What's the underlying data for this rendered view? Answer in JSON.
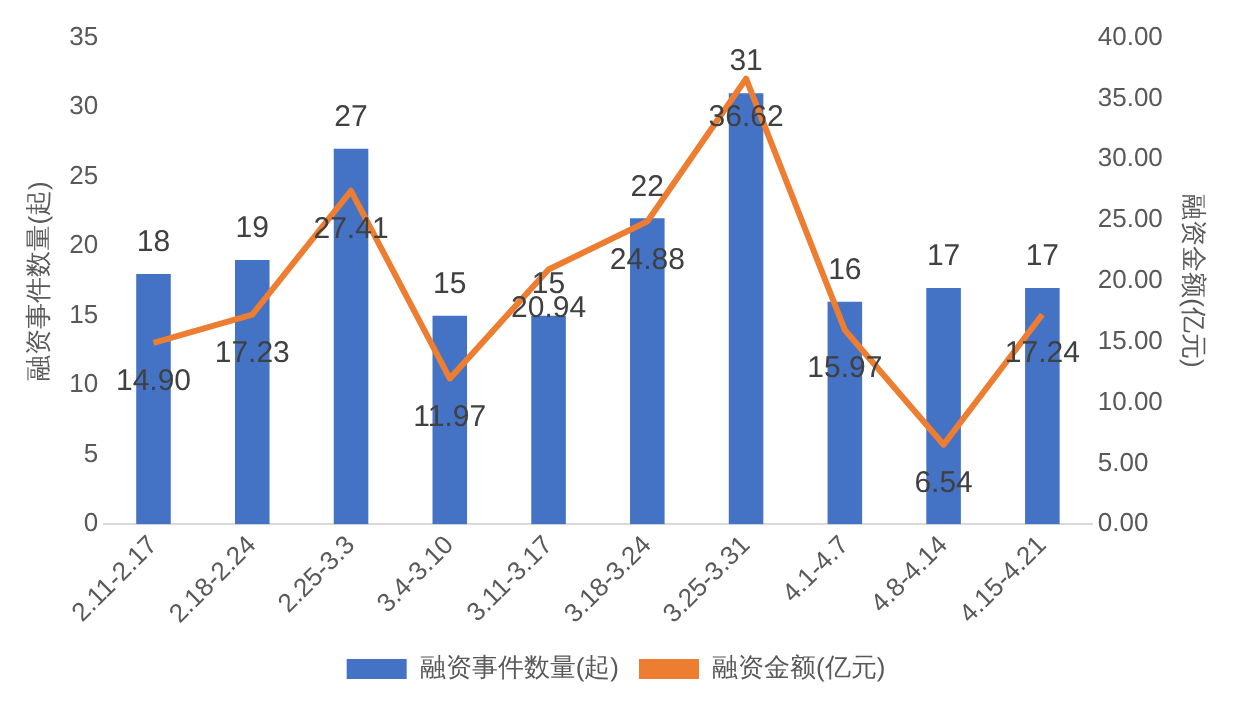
{
  "chart_data": {
    "type": "bar",
    "ylabel": "融资事件数量(起)",
    "y2label": "融资金额(亿元)",
    "categories": [
      "2.11-2.17",
      "2.18-2.24",
      "2.25-3.3",
      "3.4-3.10",
      "3.11-3.17",
      "3.18-3.24",
      "3.25-3.31",
      "4.1-4.7",
      "4.8-4.14",
      "4.15-4.21"
    ],
    "series": [
      {
        "name": "融资事件数量(起)",
        "color": "#4472c4",
        "values": [
          18,
          19,
          27,
          15,
          15,
          22,
          31,
          16,
          17,
          17
        ]
      },
      {
        "name": "融资金额(亿元)",
        "type": "line",
        "axis": "y2",
        "color": "#ed7d31",
        "values": [
          14.9,
          17.23,
          27.41,
          11.97,
          20.94,
          24.88,
          36.62,
          15.97,
          6.54,
          17.24
        ],
        "value_labels": [
          "14.90",
          "17.23",
          "27.41",
          "11.97",
          "20.94",
          "24.88",
          "36.62",
          "15.97",
          "6.54",
          "17.24"
        ]
      }
    ],
    "ylim": [
      0,
      35
    ],
    "yticks": [
      0,
      5,
      10,
      15,
      20,
      25,
      30,
      35
    ],
    "y2lim": [
      0,
      40
    ],
    "y2ticks": [
      {
        "value": 0,
        "label": "0.00"
      },
      {
        "value": 5,
        "label": "5.00"
      },
      {
        "value": 10,
        "label": "10.00"
      },
      {
        "value": 15,
        "label": "15.00"
      },
      {
        "value": 20,
        "label": "20.00"
      },
      {
        "value": 25,
        "label": "25.00"
      },
      {
        "value": 30,
        "label": "30.00"
      },
      {
        "value": 35,
        "label": "35.00"
      },
      {
        "value": 40,
        "label": "40.00"
      }
    ],
    "data_labels": true,
    "legend": "bottom",
    "grid": false,
    "marker": "none"
  }
}
